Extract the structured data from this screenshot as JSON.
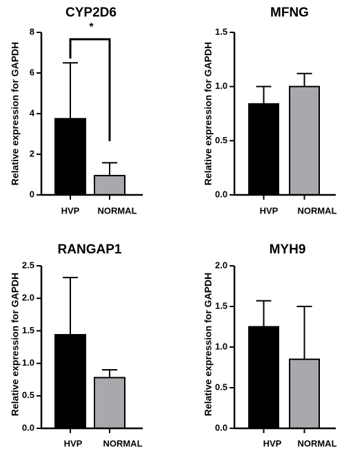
{
  "chart_data": [
    {
      "type": "bar",
      "title": "CYP2D6",
      "ylabel": "Relative expression for GAPDH",
      "categories": [
        "HVP",
        "NORMAL"
      ],
      "values": [
        3.75,
        0.95
      ],
      "error_upper": [
        6.5,
        1.58
      ],
      "colors": [
        "#000000",
        "#a8a8ad"
      ],
      "ylim": [
        0,
        8
      ],
      "yticks": [
        "0",
        "2",
        "4",
        "6",
        "8"
      ],
      "significance": "*"
    },
    {
      "type": "bar",
      "title": "MFNG",
      "ylabel": "Relative expression for GAPDH",
      "categories": [
        "HVP",
        "NORMAL"
      ],
      "values": [
        0.84,
        1.0
      ],
      "error_upper": [
        1.0,
        1.12
      ],
      "colors": [
        "#000000",
        "#a8a8ad"
      ],
      "ylim": [
        0,
        1.5
      ],
      "yticks": [
        "0.0",
        "0.5",
        "1.0",
        "1.5"
      ]
    },
    {
      "type": "bar",
      "title": "RANGAP1",
      "ylabel": "Relative expression for GAPDH",
      "categories": [
        "HVP",
        "NORMAL"
      ],
      "values": [
        1.44,
        0.78
      ],
      "error_upper": [
        2.32,
        0.9
      ],
      "colors": [
        "#000000",
        "#a8a8ad"
      ],
      "ylim": [
        0,
        2.5
      ],
      "yticks": [
        "0.0",
        "0.5",
        "1.0",
        "1.5",
        "2.0",
        "2.5"
      ]
    },
    {
      "type": "bar",
      "title": "MYH9",
      "ylabel": "Relative expression for GAPDH",
      "categories": [
        "HVP",
        "NORMAL"
      ],
      "values": [
        1.25,
        0.85
      ],
      "error_upper": [
        1.57,
        1.5
      ],
      "colors": [
        "#000000",
        "#a8a8ad"
      ],
      "ylim": [
        0,
        2.0
      ],
      "yticks": [
        "0.0",
        "0.5",
        "1.0",
        "1.5",
        "2.0"
      ]
    }
  ]
}
